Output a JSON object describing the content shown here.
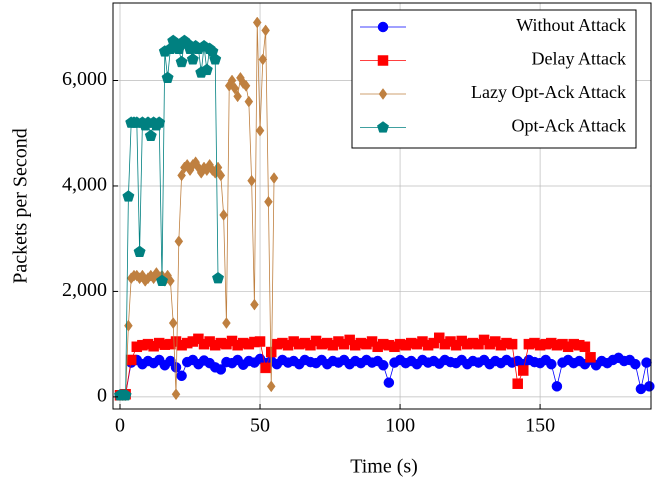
{
  "chart_data": {
    "type": "line",
    "x_label": "Time (s)",
    "y_label": "Packets per Second",
    "xlim": [
      -2.5,
      189.6
    ],
    "ylim": [
      -230,
      7470
    ],
    "xticks": [
      0,
      50,
      100,
      150
    ],
    "yticks": [
      0,
      {
        "value": 2000,
        "label": "2,000"
      },
      {
        "value": 4000,
        "label": "4,000"
      },
      {
        "value": 6000,
        "label": "6,000"
      }
    ],
    "grid": true,
    "legend": "top-right",
    "series": [
      {
        "name": "Without Attack",
        "color": "#0000ff",
        "marker": "circle",
        "x": [
          0,
          2,
          4,
          6,
          8,
          10,
          12,
          14,
          16,
          18,
          20,
          22,
          24,
          26,
          28,
          30,
          32,
          34,
          36,
          38,
          40,
          42,
          44,
          46,
          48,
          50,
          52,
          54,
          56,
          58,
          60,
          62,
          64,
          66,
          68,
          70,
          72,
          74,
          76,
          78,
          80,
          82,
          84,
          86,
          88,
          90,
          92,
          94,
          96,
          98,
          100,
          102,
          104,
          106,
          108,
          110,
          112,
          114,
          116,
          118,
          120,
          122,
          124,
          126,
          128,
          130,
          132,
          134,
          136,
          138,
          140,
          142,
          144,
          146,
          148,
          150,
          152,
          154,
          156,
          158,
          160,
          162,
          164,
          166,
          168,
          170,
          172,
          174,
          176,
          178,
          180,
          182,
          184,
          186,
          188,
          189
        ],
        "values": [
          30,
          50,
          650,
          700,
          620,
          680,
          640,
          700,
          600,
          680,
          560,
          400,
          660,
          700,
          620,
          690,
          640,
          560,
          520,
          660,
          640,
          700,
          610,
          680,
          650,
          720,
          640,
          680,
          620,
          700,
          650,
          680,
          620,
          700,
          660,
          640,
          700,
          620,
          680,
          650,
          700,
          620,
          680,
          640,
          700,
          650,
          680,
          600,
          270,
          650,
          700,
          640,
          680,
          620,
          700,
          650,
          680,
          630,
          700,
          660,
          640,
          700,
          620,
          680,
          650,
          700,
          620,
          680,
          640,
          700,
          650,
          680,
          620,
          700,
          660,
          640,
          700,
          620,
          200,
          650,
          700,
          640,
          680,
          620,
          700,
          600,
          680,
          640,
          700,
          740,
          680,
          700,
          620,
          150,
          650,
          200
        ]
      },
      {
        "name": "Delay Attack",
        "color": "#ff0000",
        "marker": "square",
        "x": [
          0,
          2,
          4,
          6,
          8,
          10,
          12,
          14,
          16,
          18,
          20,
          22,
          24,
          26,
          28,
          30,
          32,
          34,
          36,
          38,
          40,
          42,
          44,
          46,
          48,
          50,
          52,
          54,
          56,
          58,
          60,
          62,
          64,
          66,
          68,
          70,
          72,
          74,
          76,
          78,
          80,
          82,
          84,
          86,
          88,
          90,
          92,
          94,
          96,
          98,
          100,
          102,
          104,
          106,
          108,
          110,
          112,
          114,
          116,
          118,
          120,
          122,
          124,
          126,
          128,
          130,
          132,
          134,
          136,
          138,
          140,
          142,
          144,
          146,
          148,
          150,
          152,
          154,
          156,
          158,
          160,
          162,
          164,
          166,
          168
        ],
        "values": [
          30,
          50,
          700,
          950,
          980,
          1000,
          960,
          1020,
          990,
          1000,
          1050,
          980,
          1020,
          1050,
          1100,
          1000,
          1050,
          980,
          1020,
          1000,
          1060,
          980,
          1020,
          1000,
          1040,
          1050,
          550,
          850,
          1000,
          1020,
          980,
          1050,
          1000,
          1020,
          980,
          1060,
          1000,
          1020,
          980,
          1050,
          1000,
          1080,
          980,
          1020,
          1000,
          1050,
          950,
          1000,
          980,
          950,
          1000,
          980,
          1020,
          1000,
          1050,
          980,
          1020,
          1120,
          1000,
          1050,
          980,
          1060,
          1000,
          1020,
          1000,
          1080,
          1000,
          1050,
          980,
          1020,
          1000,
          250,
          500,
          1000,
          1020,
          980,
          1000,
          1020,
          980,
          1000,
          950,
          1000,
          980,
          950,
          750
        ]
      },
      {
        "name": "Lazy Opt-Ack Attack",
        "color": "#bf8040",
        "marker": "diamond",
        "x": [
          0,
          1,
          2,
          3,
          4,
          5,
          6,
          7,
          8,
          9,
          10,
          11,
          12,
          13,
          14,
          15,
          16,
          17,
          18,
          19,
          20,
          21,
          22,
          23,
          24,
          25,
          26,
          27,
          28,
          29,
          30,
          31,
          32,
          33,
          34,
          35,
          36,
          37,
          38,
          39,
          40,
          41,
          42,
          43,
          44,
          45,
          46,
          47,
          48,
          49,
          50,
          51,
          52,
          53,
          54,
          55
        ],
        "values": [
          30,
          30,
          30,
          1350,
          2250,
          2300,
          2300,
          2250,
          2300,
          2200,
          2250,
          2300,
          2250,
          2350,
          2250,
          2300,
          2200,
          2300,
          2200,
          1400,
          50,
          2950,
          4200,
          4350,
          4400,
          4300,
          4400,
          4450,
          4350,
          4250,
          4350,
          4300,
          4400,
          4300,
          4250,
          4350,
          4200,
          3450,
          1400,
          5900,
          6000,
          5850,
          5700,
          6050,
          5950,
          5900,
          5600,
          4100,
          1750,
          7100,
          5050,
          6400,
          6950,
          3700,
          200,
          4150
        ]
      },
      {
        "name": "Opt-Ack Attack",
        "color": "#008080",
        "marker": "pentagon",
        "x": [
          0,
          1,
          2,
          3,
          4,
          5,
          6,
          7,
          8,
          9,
          10,
          11,
          12,
          13,
          14,
          15,
          16,
          17,
          18,
          19,
          20,
          21,
          22,
          23,
          24,
          25,
          26,
          27,
          28,
          29,
          30,
          31,
          32,
          33,
          34,
          35
        ],
        "values": [
          30,
          30,
          30,
          3800,
          5200,
          5200,
          5200,
          2750,
          5200,
          5150,
          5200,
          4950,
          5200,
          5150,
          5200,
          2200,
          6550,
          6050,
          6600,
          6750,
          6700,
          6600,
          6350,
          6750,
          6700,
          6600,
          6400,
          6650,
          6600,
          6150,
          6650,
          6200,
          6600,
          6550,
          6400,
          2250
        ]
      }
    ]
  }
}
